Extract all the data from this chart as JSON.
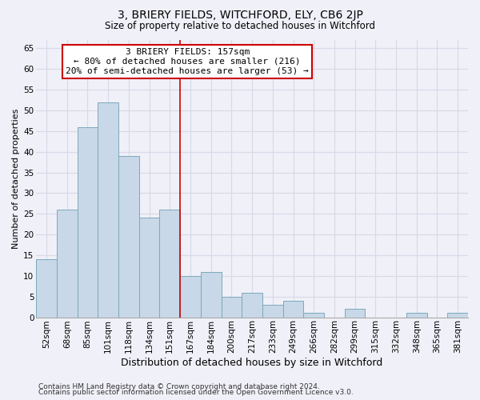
{
  "title": "3, BRIERY FIELDS, WITCHFORD, ELY, CB6 2JP",
  "subtitle": "Size of property relative to detached houses in Witchford",
  "xlabel": "Distribution of detached houses by size in Witchford",
  "ylabel": "Number of detached properties",
  "footer_line1": "Contains HM Land Registry data © Crown copyright and database right 2024.",
  "footer_line2": "Contains public sector information licensed under the Open Government Licence v3.0.",
  "bar_labels": [
    "52sqm",
    "68sqm",
    "85sqm",
    "101sqm",
    "118sqm",
    "134sqm",
    "151sqm",
    "167sqm",
    "184sqm",
    "200sqm",
    "217sqm",
    "233sqm",
    "249sqm",
    "266sqm",
    "282sqm",
    "299sqm",
    "315sqm",
    "332sqm",
    "348sqm",
    "365sqm",
    "381sqm"
  ],
  "bar_values": [
    14,
    26,
    46,
    52,
    39,
    24,
    26,
    10,
    11,
    5,
    6,
    3,
    4,
    1,
    0,
    2,
    0,
    0,
    1,
    0,
    1
  ],
  "bar_color": "#c8d8e8",
  "bar_edge_color": "#7aaabb",
  "vline_x": 6.5,
  "vline_color": "#cc0000",
  "ylim": [
    0,
    67
  ],
  "yticks": [
    0,
    5,
    10,
    15,
    20,
    25,
    30,
    35,
    40,
    45,
    50,
    55,
    60,
    65
  ],
  "annotation_title": "3 BRIERY FIELDS: 157sqm",
  "annotation_line1": "← 80% of detached houses are smaller (216)",
  "annotation_line2": "20% of semi-detached houses are larger (53) →",
  "annotation_box_color": "#ffffff",
  "annotation_box_edge_color": "#cc0000",
  "background_color": "#f0f0f8",
  "grid_color": "#d8d8e8",
  "title_fontsize": 10,
  "subtitle_fontsize": 8.5,
  "ylabel_fontsize": 8,
  "xlabel_fontsize": 9,
  "tick_fontsize": 7.5,
  "annotation_fontsize": 8,
  "footer_fontsize": 6.5
}
